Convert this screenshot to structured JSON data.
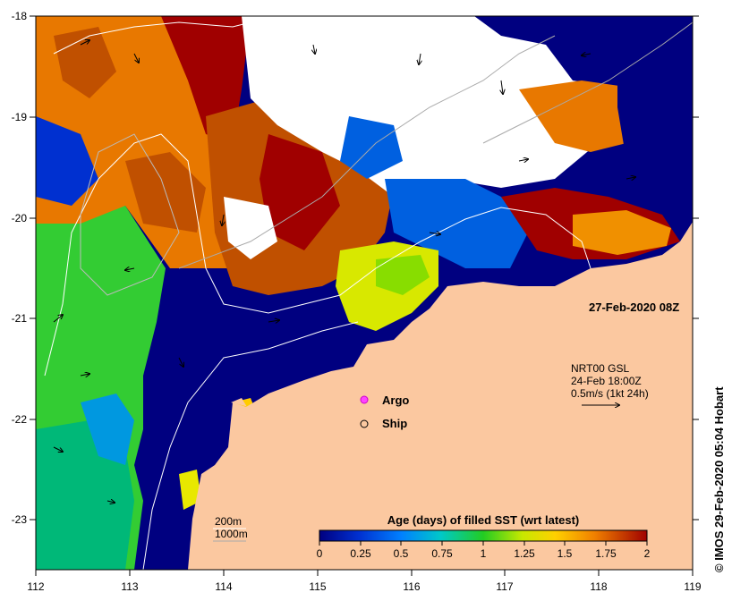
{
  "map": {
    "date_label": "27-Feb-2020 08Z",
    "credit": "© IMOS 29-Feb-2020 05:04 Hobart",
    "lon_ticks": [
      "112",
      "113",
      "114",
      "115",
      "116",
      "117",
      "118",
      "119"
    ],
    "lat_ticks": [
      "-18",
      "-19",
      "-20",
      "-21",
      "-22",
      "-23"
    ]
  },
  "current_info": {
    "line1": "NRT00 GSL",
    "line2": "24-Feb 18:00Z",
    "line3": "0.5m/s (1kt 24h)"
  },
  "legend": {
    "argo": "Argo",
    "ship": "Ship"
  },
  "contours": {
    "label_200": "200m",
    "label_1000": "1000m"
  },
  "colorbar": {
    "title": "Age (days) of filled SST (wrt latest)",
    "ticks": [
      "0",
      "0.25",
      "0.5",
      "0.75",
      "1",
      "1.25",
      "1.5",
      "1.75",
      "2"
    ]
  },
  "colors": {
    "land": "#fbc8a0",
    "no_data": "#ffffff",
    "deep_blue": "#000080",
    "green": "#33cc33",
    "orange": "#e87800",
    "dark_red": "#a00000"
  }
}
